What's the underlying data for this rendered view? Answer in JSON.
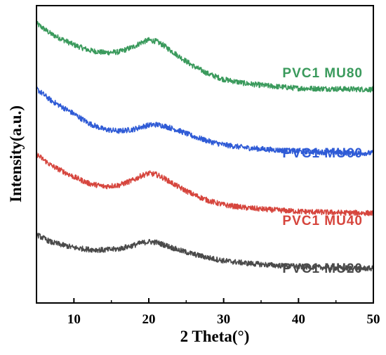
{
  "chart_data": {
    "type": "line",
    "xlabel": "2 Theta(°)",
    "ylabel": "Intensity(a.u.)",
    "xlim": [
      5,
      50
    ],
    "y_ticks_shown": false,
    "x_ticks": [
      "10",
      "20",
      "30",
      "40",
      "50"
    ],
    "grid": false,
    "legend": "inline labels at right of each curve",
    "series": [
      {
        "name": "PVC1 MU80",
        "color": "#3a9a5c",
        "x": [
          5,
          7,
          10,
          12,
          14,
          16,
          18,
          19,
          20,
          21,
          22,
          24,
          26,
          28,
          30,
          33,
          36,
          40,
          45,
          50
        ],
        "y": [
          4.7,
          4.52,
          4.34,
          4.25,
          4.21,
          4.22,
          4.31,
          4.38,
          4.42,
          4.4,
          4.33,
          4.15,
          3.98,
          3.85,
          3.76,
          3.69,
          3.65,
          3.61,
          3.6,
          3.59
        ]
      },
      {
        "name": "PVC1 MU60",
        "color": "#2f5bd6",
        "x": [
          5,
          7,
          10,
          12,
          14,
          16,
          18,
          19,
          20,
          21,
          22,
          24,
          26,
          28,
          30,
          33,
          36,
          40,
          45,
          50
        ],
        "y": [
          3.6,
          3.4,
          3.18,
          3.02,
          2.92,
          2.89,
          2.92,
          2.96,
          2.99,
          3.0,
          2.98,
          2.9,
          2.8,
          2.72,
          2.66,
          2.61,
          2.58,
          2.55,
          2.53,
          2.52
        ]
      },
      {
        "name": "PVC1 MU40",
        "color": "#d6453d",
        "x": [
          5,
          7,
          10,
          12,
          14,
          16,
          18,
          19,
          20,
          21,
          22,
          24,
          26,
          28,
          30,
          33,
          36,
          40,
          45,
          50
        ],
        "y": [
          2.5,
          2.31,
          2.12,
          2.01,
          1.96,
          1.98,
          2.07,
          2.14,
          2.18,
          2.16,
          2.1,
          1.95,
          1.82,
          1.72,
          1.65,
          1.6,
          1.57,
          1.54,
          1.52,
          1.51
        ]
      },
      {
        "name": "PVC1 MU20",
        "color": "#4a4a4a",
        "x": [
          5,
          7,
          10,
          12,
          14,
          16,
          18,
          19,
          20,
          21,
          22,
          24,
          26,
          28,
          30,
          33,
          36,
          40,
          45,
          50
        ],
        "y": [
          1.15,
          1.02,
          0.93,
          0.9,
          0.89,
          0.91,
          0.97,
          1.01,
          1.03,
          1.02,
          0.98,
          0.89,
          0.82,
          0.76,
          0.71,
          0.67,
          0.64,
          0.61,
          0.59,
          0.58
        ]
      }
    ]
  }
}
